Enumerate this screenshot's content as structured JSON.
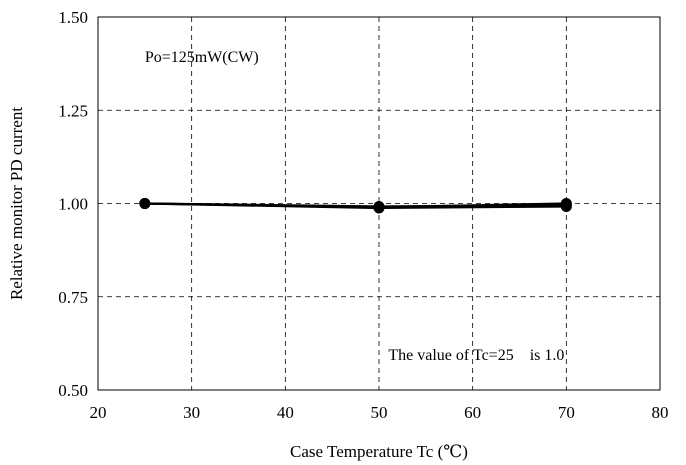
{
  "chart_data": {
    "type": "line",
    "title": "",
    "xlabel": "Case Temperature Tc (℃)",
    "ylabel": "Relative monitor PD current",
    "xlim": [
      20,
      80
    ],
    "ylim": [
      0.5,
      1.5
    ],
    "x_ticks": [
      20,
      30,
      40,
      50,
      60,
      70,
      80
    ],
    "y_ticks": [
      0.5,
      0.75,
      1.0,
      1.25,
      1.5
    ],
    "x_tick_labels": [
      "20",
      "30",
      "40",
      "50",
      "60",
      "70",
      "80"
    ],
    "y_tick_labels": [
      "0.50",
      "0.75",
      "1.00",
      "1.25",
      "1.50"
    ],
    "grid": true,
    "grid_style": "dashed",
    "series": [
      {
        "x": [
          25,
          50,
          70
        ],
        "y": [
          1.0,
          0.99,
          1.0
        ]
      },
      {
        "x": [
          25,
          50,
          70
        ],
        "y": [
          1.0,
          0.988,
          0.992
        ]
      },
      {
        "x": [
          25,
          50,
          70
        ],
        "y": [
          1.0,
          0.992,
          0.996
        ]
      }
    ],
    "annotations": [
      {
        "text": "Po=125mW(CW)",
        "x": 25,
        "y": 1.38
      },
      {
        "text": "The value of Tc=25    is 1.0",
        "x": 51,
        "y": 0.58
      }
    ],
    "colors": {
      "line": "#000000",
      "grid": "#000000",
      "background": "#ffffff"
    }
  }
}
